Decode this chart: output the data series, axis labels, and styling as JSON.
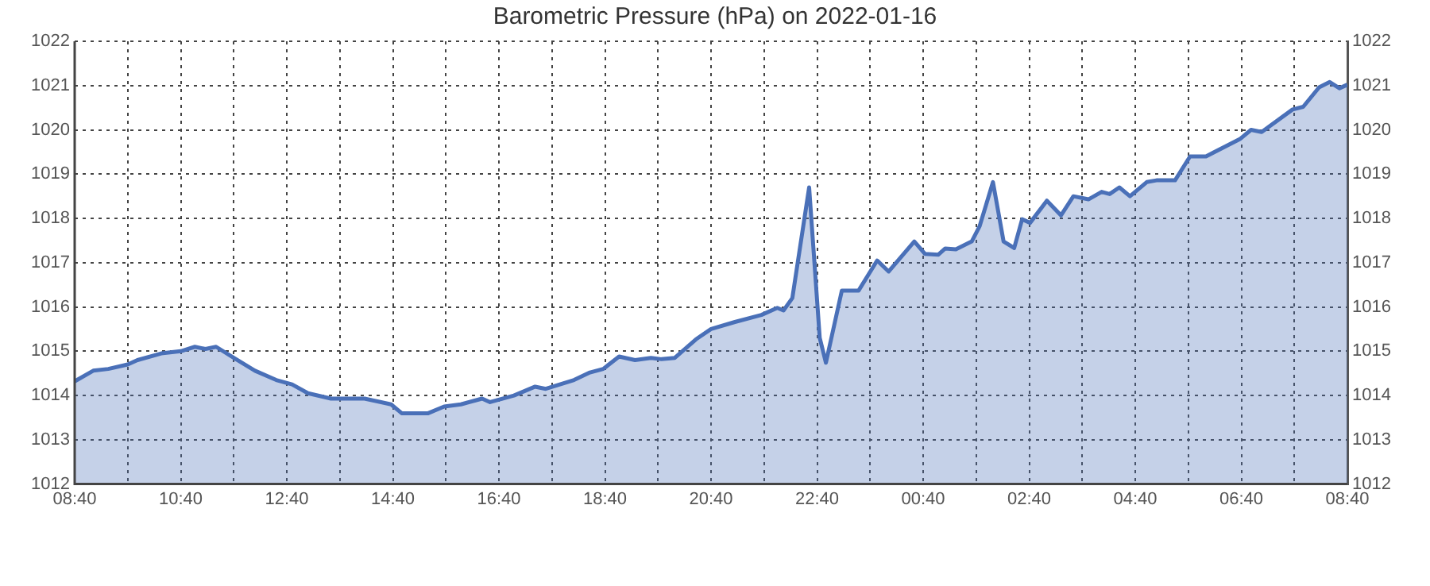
{
  "chart_data": {
    "type": "area",
    "title": "Barometric Pressure (hPa) on 2022-01-16",
    "series": [
      {
        "color": "#4a70b8",
        "x": [
          "2022-01-16T08:40",
          "2022-01-16T09:01",
          "2022-01-16T09:18",
          "2022-01-16T09:40",
          "2022-01-16T09:51",
          "2022-01-16T10:18",
          "2022-01-16T10:40",
          "2022-01-16T10:56",
          "2022-01-16T11:08",
          "2022-01-16T11:20",
          "2022-01-16T11:40",
          "2022-01-16T12:04",
          "2022-01-16T12:28",
          "2022-01-16T12:46",
          "2022-01-16T13:04",
          "2022-01-16T13:30",
          "2022-01-16T14:08",
          "2022-01-16T14:38",
          "2022-01-16T14:50",
          "2022-01-16T15:20",
          "2022-01-16T15:38",
          "2022-01-16T15:57",
          "2022-01-16T16:21",
          "2022-01-16T16:30",
          "2022-01-16T16:57",
          "2022-01-16T17:21",
          "2022-01-16T17:33",
          "2022-01-16T18:05",
          "2022-01-16T18:23",
          "2022-01-16T18:38",
          "2022-01-16T18:56",
          "2022-01-16T19:14",
          "2022-01-16T19:32",
          "2022-01-16T19:44",
          "2022-01-16T19:59",
          "2022-01-16T20:23",
          "2022-01-16T20:40",
          "2022-01-16T21:07",
          "2022-01-16T21:37",
          "2022-01-16T21:55",
          "2022-01-16T22:02",
          "2022-01-16T22:12",
          "2022-01-16T22:31",
          "2022-01-16T22:43",
          "2022-01-16T22:50",
          "2022-01-16T23:08",
          "2022-01-16T23:27",
          "2022-01-16T23:48",
          "2022-01-17T00:01",
          "2022-01-17T00:30",
          "2022-01-17T00:42",
          "2022-01-17T00:57",
          "2022-01-17T01:05",
          "2022-01-17T01:17",
          "2022-01-17T01:35",
          "2022-01-17T01:44",
          "2022-01-17T01:59",
          "2022-01-17T02:11",
          "2022-01-17T02:23",
          "2022-01-17T02:32",
          "2022-01-17T02:41",
          "2022-01-17T03:00",
          "2022-01-17T03:16",
          "2022-01-17T03:30",
          "2022-01-17T03:47",
          "2022-01-17T04:02",
          "2022-01-17T04:11",
          "2022-01-17T04:22",
          "2022-01-17T04:34",
          "2022-01-17T04:53",
          "2022-01-17T05:04",
          "2022-01-17T05:25",
          "2022-01-17T05:42",
          "2022-01-17T06:00",
          "2022-01-17T06:39",
          "2022-01-17T06:51",
          "2022-01-17T07:03",
          "2022-01-17T07:38",
          "2022-01-17T07:50",
          "2022-01-17T08:08",
          "2022-01-17T08:20",
          "2022-01-17T08:31",
          "2022-01-17T08:40"
        ],
        "values": [
          1014.32,
          1014.56,
          1014.6,
          1014.7,
          1014.8,
          1014.95,
          1015.0,
          1015.1,
          1015.05,
          1015.1,
          1014.85,
          1014.56,
          1014.35,
          1014.25,
          1014.05,
          1013.93,
          1013.93,
          1013.8,
          1013.6,
          1013.6,
          1013.75,
          1013.8,
          1013.93,
          1013.85,
          1014.0,
          1014.2,
          1014.15,
          1014.35,
          1014.52,
          1014.6,
          1014.88,
          1014.8,
          1014.85,
          1014.82,
          1014.85,
          1015.27,
          1015.5,
          1015.66,
          1015.82,
          1015.98,
          1015.92,
          1016.2,
          1018.7,
          1015.3,
          1014.74,
          1016.37,
          1016.37,
          1017.05,
          1016.8,
          1017.48,
          1017.2,
          1017.18,
          1017.32,
          1017.3,
          1017.48,
          1017.83,
          1018.82,
          1017.48,
          1017.33,
          1017.98,
          1017.9,
          1018.4,
          1018.07,
          1018.5,
          1018.43,
          1018.6,
          1018.55,
          1018.7,
          1018.5,
          1018.82,
          1018.86,
          1018.86,
          1019.4,
          1019.4,
          1019.8,
          1020.0,
          1019.95,
          1020.46,
          1020.52,
          1020.96,
          1021.08,
          1020.94,
          1021.02
        ]
      }
    ],
    "xlim": [
      "2022-01-16T08:40",
      "2022-01-17T08:40"
    ],
    "xticks": [
      {
        "value": "2022-01-16T08:40",
        "label": "08:40"
      },
      {
        "value": "2022-01-16T09:40",
        "label": null
      },
      {
        "value": "2022-01-16T10:40",
        "label": "10:40"
      },
      {
        "value": "2022-01-16T11:40",
        "label": null
      },
      {
        "value": "2022-01-16T12:40",
        "label": "12:40"
      },
      {
        "value": "2022-01-16T13:40",
        "label": null
      },
      {
        "value": "2022-01-16T14:40",
        "label": "14:40"
      },
      {
        "value": "2022-01-16T15:40",
        "label": null
      },
      {
        "value": "2022-01-16T16:40",
        "label": "16:40"
      },
      {
        "value": "2022-01-16T17:40",
        "label": null
      },
      {
        "value": "2022-01-16T18:40",
        "label": "18:40"
      },
      {
        "value": "2022-01-16T19:40",
        "label": null
      },
      {
        "value": "2022-01-16T20:40",
        "label": "20:40"
      },
      {
        "value": "2022-01-16T21:40",
        "label": null
      },
      {
        "value": "2022-01-16T22:40",
        "label": "22:40"
      },
      {
        "value": "2022-01-16T23:40",
        "label": null
      },
      {
        "value": "2022-01-17T00:40",
        "label": "00:40"
      },
      {
        "value": "2022-01-17T01:40",
        "label": null
      },
      {
        "value": "2022-01-17T02:40",
        "label": "02:40"
      },
      {
        "value": "2022-01-17T03:40",
        "label": null
      },
      {
        "value": "2022-01-17T04:40",
        "label": "04:40"
      },
      {
        "value": "2022-01-17T05:40",
        "label": null
      },
      {
        "value": "2022-01-17T06:40",
        "label": "06:40"
      },
      {
        "value": "2022-01-17T07:40",
        "label": null
      },
      {
        "value": "2022-01-17T08:40",
        "label": "08:40"
      }
    ],
    "ylim": [
      1012,
      1022
    ],
    "yticks": [
      1012,
      1013,
      1014,
      1015,
      1016,
      1017,
      1018,
      1019,
      1020,
      1021,
      1022
    ],
    "y2lim": [
      1012,
      1022
    ],
    "y2ticks": [
      1012,
      1013,
      1014,
      1015,
      1016,
      1017,
      1018,
      1019,
      1020,
      1021,
      1022
    ],
    "grid": true,
    "legend": false,
    "marker": "none",
    "line_style": "solid"
  }
}
